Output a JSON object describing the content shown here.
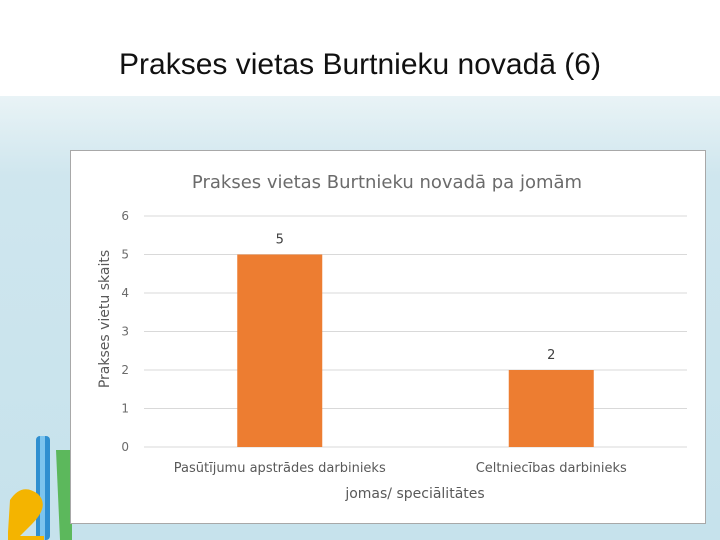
{
  "slide": {
    "title": "Prakses vietas Burtnieku novadā (6)"
  },
  "colors": {
    "bar": "#ED7D31",
    "background_band": "#c6e2ec"
  },
  "chart_data": {
    "type": "bar",
    "title": "Prakses vietas Burtnieku novadā pa jomām",
    "xlabel": "jomas/ speciālitātes",
    "ylabel": "Prakses vietu skaits",
    "categories": [
      "Pasūtījumu apstrādes darbinieks",
      "Celtniecības darbinieks"
    ],
    "values": [
      5,
      2
    ],
    "ylim": [
      0,
      6
    ],
    "yticks": [
      0,
      1,
      2,
      3,
      4,
      5,
      6
    ],
    "grid": true,
    "legend": "none",
    "data_labels": true
  }
}
